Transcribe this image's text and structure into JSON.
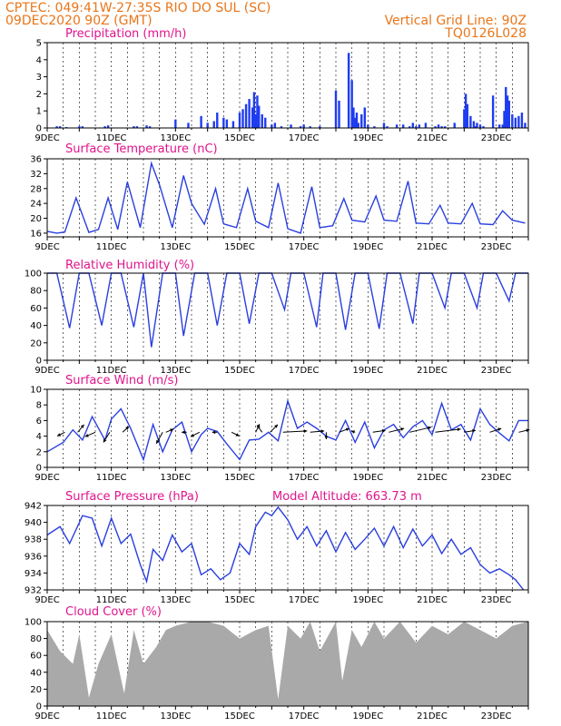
{
  "header": {
    "left_line1": "CPTEC:   049:41W-27:35S   RIO DO SUL (SC)",
    "left_line2": "09DEC2020 90Z (GMT)",
    "right_line1": "Vertical Grid Line: 90Z",
    "right_line2": "TQ0126L028"
  },
  "colors": {
    "header": "#e8761a",
    "title": "#e0148c",
    "line": "#2a3fe0",
    "bar": "#1f3cf0",
    "cloud": "#a9a9a9"
  },
  "x_labels": [
    "9DEC",
    "11DEC",
    "13DEC",
    "15DEC",
    "17DEC",
    "19DEC",
    "21DEC",
    "23DEC"
  ],
  "chart_data": [
    {
      "type": "bar",
      "title": "Precipitation (mm/h)",
      "ylim": [
        0,
        5
      ],
      "yticks": [
        0,
        1,
        2,
        3,
        4,
        5
      ],
      "x": [
        0.3,
        0.4,
        0.6,
        1.0,
        1.1,
        1.8,
        1.9,
        2.7,
        2.8,
        3.1,
        3.2,
        4.0,
        4.4,
        4.8,
        5.0,
        5.2,
        5.3,
        5.5,
        5.6,
        5.8,
        6.0,
        6.1,
        6.2,
        6.3,
        6.4,
        6.45,
        6.5,
        6.55,
        6.6,
        6.7,
        6.8,
        7.0,
        7.1,
        7.3,
        7.6,
        7.9,
        8.0,
        8.2,
        8.5,
        9.0,
        9.1,
        9.4,
        9.5,
        9.55,
        9.6,
        9.65,
        9.7,
        9.8,
        9.9,
        10.0,
        10.2,
        10.5,
        10.6,
        10.9,
        11.1,
        11.3,
        11.4,
        11.5,
        11.6,
        11.8,
        12.1,
        12.2,
        12.3,
        12.4,
        12.7,
        13.0,
        13.05,
        13.1,
        13.2,
        13.3,
        13.35,
        13.4,
        13.5,
        13.6,
        13.9,
        14.1,
        14.2,
        14.25,
        14.3,
        14.35,
        14.4,
        14.5,
        14.6,
        14.7,
        14.8,
        14.9
      ],
      "values": [
        0.1,
        0.1,
        0.05,
        0.1,
        0.1,
        0.1,
        0.15,
        0.1,
        0.1,
        0.15,
        0.1,
        0.5,
        0.3,
        0.7,
        0.3,
        0.4,
        0.9,
        0.6,
        0.5,
        0.4,
        0.9,
        1.1,
        1.4,
        1.7,
        1.2,
        2.1,
        0.8,
        1.9,
        1.3,
        0.8,
        0.6,
        0.2,
        0.3,
        0.1,
        0.2,
        0.1,
        0.2,
        0.1,
        0.1,
        2.2,
        1.6,
        4.4,
        2.8,
        1.2,
        0.6,
        0.9,
        0.3,
        0.8,
        1.2,
        0.2,
        0.1,
        0.3,
        0.1,
        0.2,
        0.2,
        0.1,
        0.3,
        0.1,
        0.2,
        0.3,
        0.1,
        0.2,
        0.1,
        0.1,
        0.3,
        1.1,
        2.0,
        1.4,
        0.7,
        0.4,
        0.1,
        0.3,
        0.2,
        0.1,
        1.9,
        0.2,
        0.2,
        1.0,
        2.4,
        1.9,
        1.6,
        0.8,
        0.6,
        0.7,
        0.9,
        0.3
      ]
    },
    {
      "type": "line",
      "title": "Surface Temperature (nC)",
      "ylim": [
        15,
        36
      ],
      "yticks": [
        16,
        20,
        24,
        28,
        32,
        36
      ],
      "x": [
        0,
        0.3,
        0.55,
        0.9,
        1.3,
        1.6,
        1.9,
        2.2,
        2.5,
        2.9,
        3.25,
        3.5,
        3.9,
        4.25,
        4.5,
        4.9,
        5.25,
        5.5,
        5.9,
        6.25,
        6.5,
        6.9,
        7.2,
        7.5,
        7.9,
        8.25,
        8.5,
        8.9,
        9.25,
        9.5,
        9.9,
        10.25,
        10.5,
        10.9,
        11.25,
        11.5,
        11.9,
        12.25,
        12.5,
        12.9,
        13.25,
        13.5,
        13.9,
        14.2,
        14.5,
        14.9
      ],
      "values": [
        16.5,
        16,
        16.3,
        25.5,
        16.2,
        17,
        25.5,
        17,
        29.8,
        17.5,
        34.8,
        29,
        17.5,
        31.5,
        24,
        18.4,
        28,
        18.5,
        17.5,
        28,
        19.2,
        17.5,
        29.5,
        17.2,
        16,
        28.5,
        17.5,
        18,
        25.3,
        19.5,
        19,
        26,
        19.5,
        19.2,
        30,
        18.7,
        18.5,
        23.5,
        18.7,
        18.5,
        24,
        18.5,
        18.3,
        22,
        19.5,
        18.7
      ]
    },
    {
      "type": "line",
      "title": "Relative Humidity (%)",
      "ylim": [
        0,
        100
      ],
      "yticks": [
        0,
        20,
        40,
        60,
        80,
        100
      ],
      "x": [
        0,
        0.3,
        0.7,
        1.0,
        1.3,
        1.7,
        2.0,
        2.3,
        2.7,
        3.0,
        3.25,
        3.6,
        4.0,
        4.25,
        4.6,
        5.0,
        5.3,
        5.6,
        6.0,
        6.3,
        6.6,
        7.0,
        7.4,
        7.6,
        8.0,
        8.4,
        8.6,
        9.0,
        9.3,
        9.6,
        10.0,
        10.35,
        10.6,
        11.0,
        11.4,
        11.6,
        12.0,
        12.4,
        12.6,
        13.0,
        13.4,
        13.6,
        14.0,
        14.4,
        14.6,
        15.0
      ],
      "values": [
        100,
        100,
        37,
        100,
        100,
        40,
        100,
        100,
        38,
        100,
        15,
        100,
        100,
        28,
        100,
        100,
        40,
        100,
        100,
        42,
        100,
        100,
        58,
        100,
        100,
        38,
        100,
        100,
        35,
        100,
        100,
        36,
        100,
        100,
        42,
        100,
        100,
        60,
        100,
        100,
        60,
        100,
        100,
        68,
        100,
        100
      ]
    },
    {
      "type": "line",
      "title": "Surface Wind (m/s)",
      "ylim": [
        0,
        10
      ],
      "yticks": [
        0,
        2,
        4,
        6,
        8,
        10
      ],
      "x": [
        0,
        0.5,
        0.8,
        1.1,
        1.4,
        1.8,
        2.0,
        2.3,
        2.6,
        3.0,
        3.3,
        3.6,
        3.9,
        4.2,
        4.5,
        4.8,
        5.0,
        5.3,
        5.6,
        6.0,
        6.3,
        6.6,
        6.9,
        7.2,
        7.5,
        7.8,
        8.1,
        8.4,
        8.7,
        9.0,
        9.3,
        9.6,
        9.9,
        10.2,
        10.5,
        10.8,
        11.1,
        11.4,
        11.7,
        12.0,
        12.3,
        12.6,
        12.9,
        13.2,
        13.5,
        13.8,
        14.1,
        14.4,
        14.7,
        15.0
      ],
      "values": [
        2.0,
        3.2,
        4.8,
        3.5,
        6.5,
        3.5,
        6.2,
        7.5,
        5.0,
        1.0,
        5.5,
        2.0,
        4.8,
        5.8,
        2.0,
        4.2,
        5.0,
        4.6,
        3.0,
        1.0,
        3.5,
        3.6,
        4.5,
        3.4,
        8.5,
        5.0,
        5.8,
        5.0,
        4.0,
        3.5,
        6.0,
        3.2,
        5.8,
        2.5,
        4.8,
        5.5,
        3.8,
        5.2,
        6.0,
        4.2,
        8.2,
        4.8,
        5.5,
        3.5,
        7.5,
        5.5,
        4.4,
        3.4,
        6.0,
        6.0
      ],
      "vectors": [
        {
          "x": 0.55,
          "u": -0.6,
          "v": -0.3
        },
        {
          "x": 0.95,
          "u": 0.5,
          "v": 0.6
        },
        {
          "x": 1.5,
          "u": -0.8,
          "v": -0.35
        },
        {
          "x": 1.95,
          "u": -0.5,
          "v": -0.8
        },
        {
          "x": 2.35,
          "u": 0.5,
          "v": 0.45
        },
        {
          "x": 3.6,
          "u": -0.5,
          "v": -0.9
        },
        {
          "x": 3.7,
          "u": 0.6,
          "v": 0.25
        },
        {
          "x": 4.35,
          "u": -0.4,
          "v": 0.0
        },
        {
          "x": 4.75,
          "u": -0.7,
          "v": -0.35
        },
        {
          "x": 5.3,
          "u": -0.4,
          "v": 0.0
        },
        {
          "x": 5.75,
          "u": 0.6,
          "v": -0.3
        },
        {
          "x": 6.5,
          "u": 0.3,
          "v": 0.65
        },
        {
          "x": 6.7,
          "u": -0.4,
          "v": 0.55
        },
        {
          "x": 6.95,
          "u": 0.6,
          "v": 0.6
        },
        {
          "x": 7.35,
          "u": 1.9,
          "v": 0.1
        },
        {
          "x": 8.2,
          "u": 1.1,
          "v": 0.1
        },
        {
          "x": 8.7,
          "u": 0.0,
          "v": -0.55
        },
        {
          "x": 9.1,
          "u": 0.8,
          "v": 0.3
        },
        {
          "x": 9.6,
          "u": -0.3,
          "v": 0.1
        },
        {
          "x": 10.15,
          "u": 1.0,
          "v": 0.15
        },
        {
          "x": 10.65,
          "u": 1.2,
          "v": 0.3
        },
        {
          "x": 11.3,
          "u": 1.7,
          "v": 0.4
        },
        {
          "x": 12.1,
          "u": 2.0,
          "v": 0.25
        },
        {
          "x": 13.0,
          "u": 0.9,
          "v": 0.15
        },
        {
          "x": 13.8,
          "u": 0.9,
          "v": 0.3
        },
        {
          "x": 14.7,
          "u": 0.85,
          "v": 0.2
        }
      ]
    },
    {
      "type": "line",
      "title": "Surface Pressure (hPa)",
      "annotation": "Model Altitude: 663.73 m",
      "ylim": [
        932,
        942
      ],
      "yticks": [
        932,
        934,
        936,
        938,
        940,
        942
      ],
      "x": [
        0,
        0.4,
        0.7,
        1.1,
        1.4,
        1.7,
        2.0,
        2.3,
        2.6,
        2.9,
        3.1,
        3.3,
        3.6,
        3.9,
        4.2,
        4.5,
        4.8,
        5.1,
        5.4,
        5.7,
        6.0,
        6.3,
        6.5,
        6.8,
        7.0,
        7.2,
        7.5,
        7.8,
        8.1,
        8.4,
        8.7,
        9.0,
        9.3,
        9.6,
        9.9,
        10.2,
        10.5,
        10.8,
        11.1,
        11.4,
        11.7,
        12.0,
        12.3,
        12.6,
        12.9,
        13.2,
        13.5,
        13.8,
        14.1,
        14.4,
        14.6,
        14.85
      ],
      "values": [
        938.5,
        939.5,
        937.5,
        940.8,
        940.5,
        937.2,
        940.5,
        937.5,
        938.6,
        935.0,
        933.0,
        936.8,
        935.5,
        938.5,
        936.5,
        937.5,
        933.8,
        934.5,
        933.2,
        934.0,
        937.5,
        936.2,
        939.5,
        941.2,
        940.8,
        941.8,
        940.3,
        938.0,
        939.5,
        937.2,
        939.0,
        936.5,
        938.8,
        936.8,
        938.0,
        939.3,
        937.2,
        939.5,
        937.0,
        939.2,
        937.2,
        938.5,
        936.3,
        938.0,
        936.2,
        937.0,
        935.0,
        934.0,
        934.5,
        933.8,
        933.2,
        932.0
      ]
    },
    {
      "type": "area",
      "title": "Cloud Cover (%)",
      "ylim": [
        0,
        100
      ],
      "yticks": [
        0,
        20,
        40,
        60,
        80,
        100
      ],
      "x": [
        0,
        0.4,
        0.8,
        1.0,
        1.3,
        1.6,
        2.0,
        2.4,
        2.7,
        3.0,
        3.4,
        3.7,
        4.0,
        4.5,
        5.0,
        5.5,
        6.0,
        6.5,
        6.9,
        7.2,
        7.5,
        7.9,
        8.2,
        8.5,
        9.0,
        9.2,
        9.5,
        9.8,
        10.2,
        10.5,
        11.0,
        11.5,
        12.0,
        12.5,
        13.0,
        13.5,
        14.0,
        14.5,
        15.0
      ],
      "values": [
        90,
        65,
        50,
        85,
        10,
        50,
        85,
        15,
        90,
        50,
        70,
        90,
        95,
        100,
        100,
        95,
        80,
        90,
        95,
        8,
        95,
        80,
        100,
        65,
        100,
        30,
        90,
        70,
        100,
        80,
        100,
        75,
        95,
        85,
        100,
        90,
        80,
        95,
        100
      ]
    }
  ]
}
